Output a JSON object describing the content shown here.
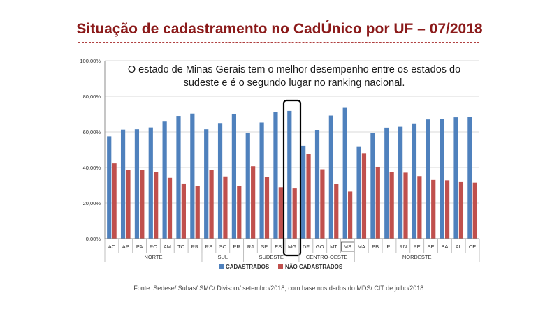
{
  "slide": {
    "title": "Situação de cadastramento no CadÚnico por UF – 07/2018",
    "source": "Fonte: Sedese/ Subas/ SMC/ Divisom/ setembro/2018, com base nos dados  do MDS/ CIT de julho/2018."
  },
  "chart_data": {
    "type": "bar",
    "title": "Situação de cadastramento no CadÚnico por UF – 07/2018",
    "annotation": "O estado de Minas Gerais tem o melhor desempenho entre os estados do sudeste e é o segundo lugar no ranking nacional.",
    "ylim": [
      0,
      100
    ],
    "yticks": [
      "0,00%",
      "20,00%",
      "40,00%",
      "60,00%",
      "80,00%",
      "100,00%"
    ],
    "grid": true,
    "legend_position": "bottom",
    "colors": {
      "cadastrados": "#4f81bd",
      "nao_cadastrados": "#c0504d"
    },
    "categories": [
      "AC",
      "AP",
      "PA",
      "RO",
      "AM",
      "TO",
      "RR",
      "RS",
      "SC",
      "PR",
      "RJ",
      "SP",
      "ES",
      "MG",
      "DF",
      "GO",
      "MT",
      "MS",
      "MA",
      "PB",
      "PI",
      "RN",
      "PE",
      "SE",
      "BA",
      "AL",
      "CE"
    ],
    "regions": [
      {
        "name": "NORTE",
        "count": 7
      },
      {
        "name": "SUL",
        "count": 3
      },
      {
        "name": "SUDESTE",
        "count": 4
      },
      {
        "name": "CENTRO-OESTE",
        "count": 4
      },
      {
        "name": "NORDESTE",
        "count": 9
      }
    ],
    "highlighted": [
      "MG"
    ],
    "boxed_label": [
      "MS"
    ],
    "series": [
      {
        "name": "CADASTRADOS",
        "values": [
          57.5,
          61.3,
          61.5,
          62.5,
          65.8,
          69.0,
          70.3,
          61.5,
          65.0,
          70.2,
          59.3,
          65.3,
          71.1,
          71.8,
          52.2,
          61.0,
          69.2,
          73.5,
          51.9,
          59.6,
          62.4,
          62.9,
          64.8,
          67.0,
          67.2,
          68.2,
          68.5
        ]
      },
      {
        "name": "NÃO CADASTRADOS",
        "values": [
          42.3,
          38.7,
          38.5,
          37.5,
          34.2,
          31.0,
          29.7,
          38.5,
          35.0,
          29.8,
          40.7,
          34.7,
          28.9,
          28.2,
          47.8,
          39.0,
          30.8,
          26.5,
          48.1,
          40.4,
          37.6,
          37.1,
          35.2,
          33.0,
          32.8,
          31.8,
          31.5
        ]
      }
    ]
  }
}
